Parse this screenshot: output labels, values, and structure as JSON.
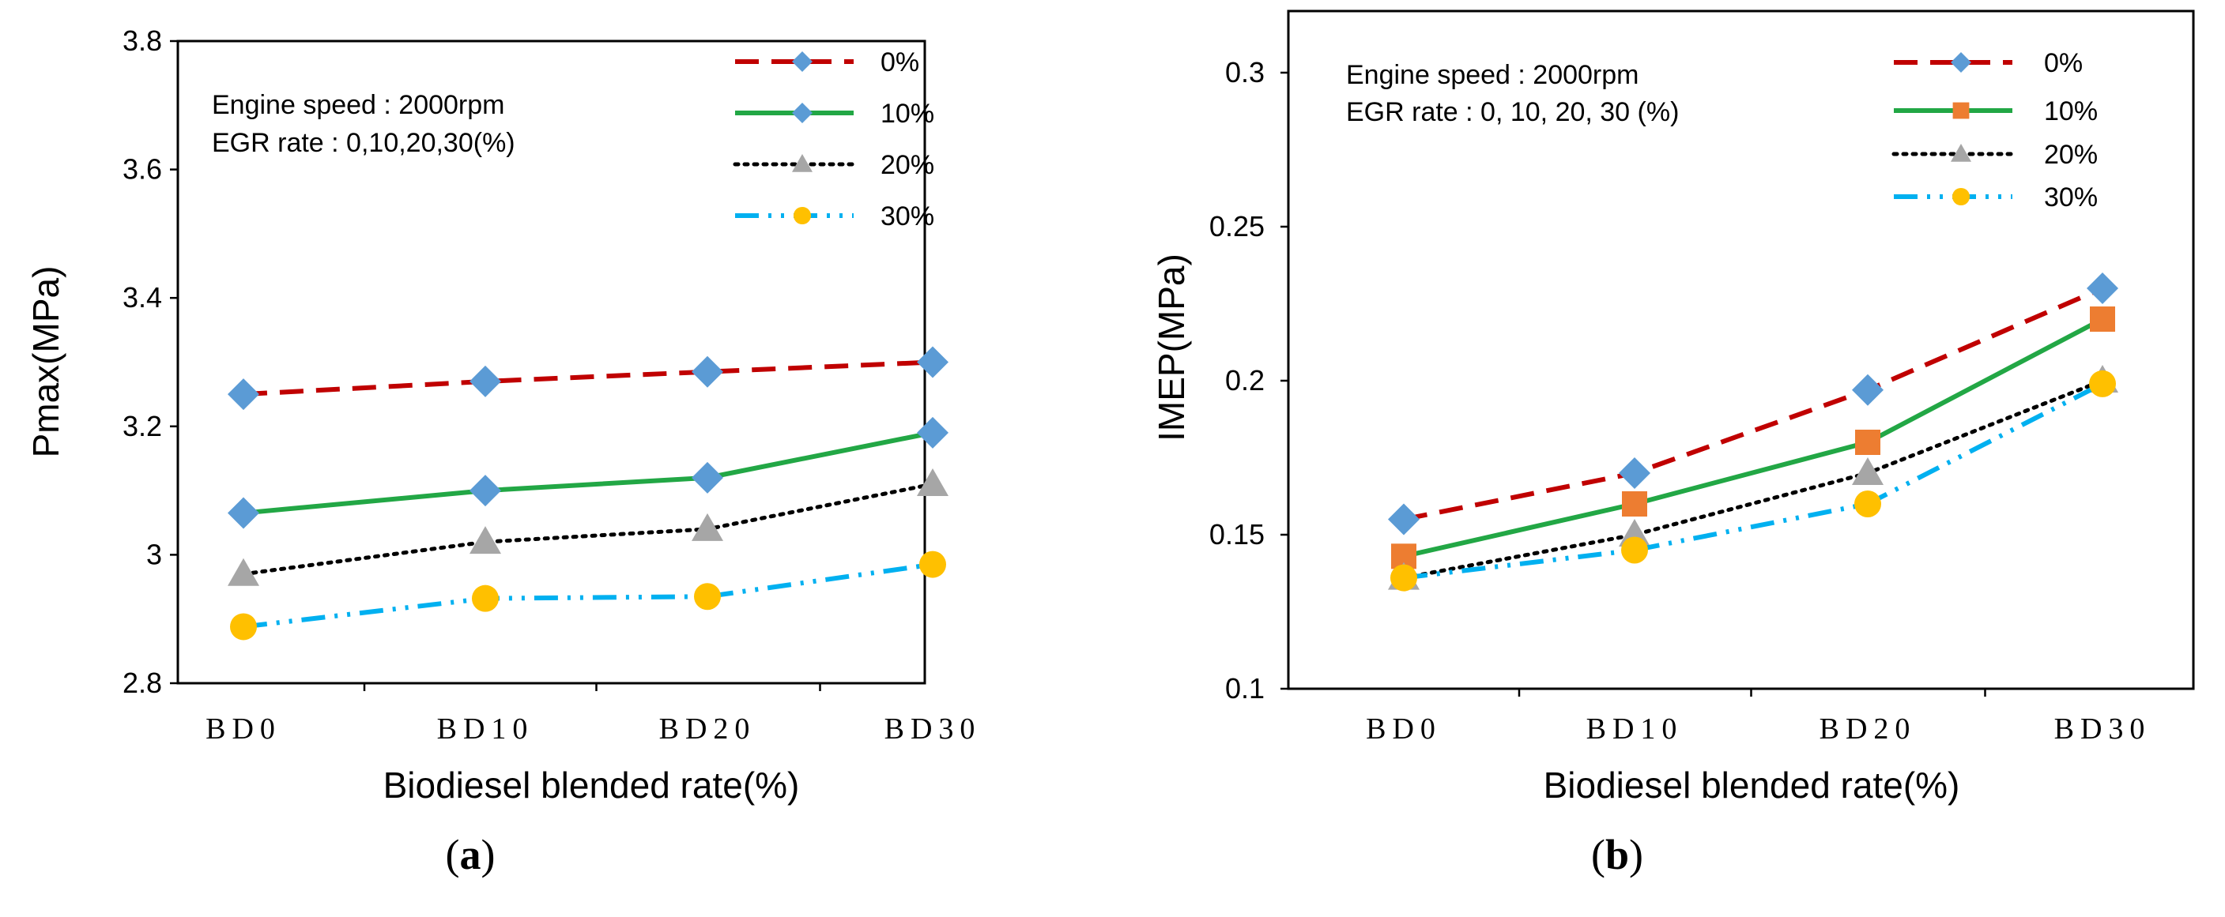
{
  "chart_data": [
    {
      "type": "line",
      "panel_label": "(a)",
      "panel_letter": "a",
      "ylabel": "Pmax(MPa)",
      "xlabel": "Biodiesel blended rate(%)",
      "categories": [
        "BD0",
        "BD10",
        "BD20",
        "BD30"
      ],
      "ylim": [
        2.8,
        3.8
      ],
      "yticks": [
        2.8,
        3.0,
        3.2,
        3.4,
        3.6,
        3.8
      ],
      "ytick_labels": [
        "2.8",
        "3",
        "3.2",
        "3.4",
        "3.6",
        "3.8"
      ],
      "annotations": [
        "Engine speed : 2000rpm",
        "EGR rate : 0,10,20,30(%)"
      ],
      "legend_position": "top-right",
      "series": [
        {
          "name": "0%",
          "values": [
            3.25,
            3.27,
            3.285,
            3.3
          ],
          "color": "#C00000",
          "dash": "dash",
          "marker": "diamond",
          "marker_color": "#5B9BD5"
        },
        {
          "name": "10%",
          "values": [
            3.065,
            3.1,
            3.12,
            3.19
          ],
          "color": "#22A745",
          "dash": "solid",
          "marker": "diamond",
          "marker_color": "#5B9BD5"
        },
        {
          "name": "20%",
          "values": [
            2.97,
            3.02,
            3.04,
            3.11
          ],
          "color": "#000000",
          "dash": "dot",
          "marker": "triangle",
          "marker_color": "#A6A6A6"
        },
        {
          "name": "30%",
          "values": [
            2.888,
            2.932,
            2.935,
            2.985
          ],
          "color": "#00B0F0",
          "dash": "dashdotdot",
          "marker": "circle",
          "marker_color": "#FFC000"
        }
      ]
    },
    {
      "type": "line",
      "panel_label": "(b)",
      "panel_letter": "b",
      "ylabel": "IMEP(MPa)",
      "xlabel": "Biodiesel blended  rate(%)",
      "categories": [
        "BD0",
        "BD10",
        "BD20",
        "BD30"
      ],
      "ylim": [
        0.1,
        0.32
      ],
      "yticks": [
        0.1,
        0.15,
        0.2,
        0.25,
        0.3
      ],
      "ytick_labels": [
        "0.1",
        "0.15",
        "0.2",
        "0.25",
        "0.3"
      ],
      "annotations": [
        "Engine speed : 2000rpm",
        "EGR rate : 0, 10, 20, 30 (%)"
      ],
      "legend_position": "top-right",
      "series": [
        {
          "name": "0%",
          "values": [
            0.155,
            0.17,
            0.197,
            0.23
          ],
          "color": "#C00000",
          "dash": "dash",
          "marker": "diamond",
          "marker_color": "#5B9BD5"
        },
        {
          "name": "10%",
          "values": [
            0.143,
            0.16,
            0.18,
            0.22
          ],
          "color": "#22A745",
          "dash": "solid",
          "marker": "square",
          "marker_color": "#ED7D31"
        },
        {
          "name": "20%",
          "values": [
            0.136,
            0.15,
            0.17,
            0.2
          ],
          "color": "#000000",
          "dash": "dot",
          "marker": "triangle",
          "marker_color": "#A6A6A6"
        },
        {
          "name": "30%",
          "values": [
            0.136,
            0.145,
            0.16,
            0.199
          ],
          "color": "#00B0F0",
          "dash": "dashdotdot",
          "marker": "circle",
          "marker_color": "#FFC000"
        }
      ]
    }
  ]
}
